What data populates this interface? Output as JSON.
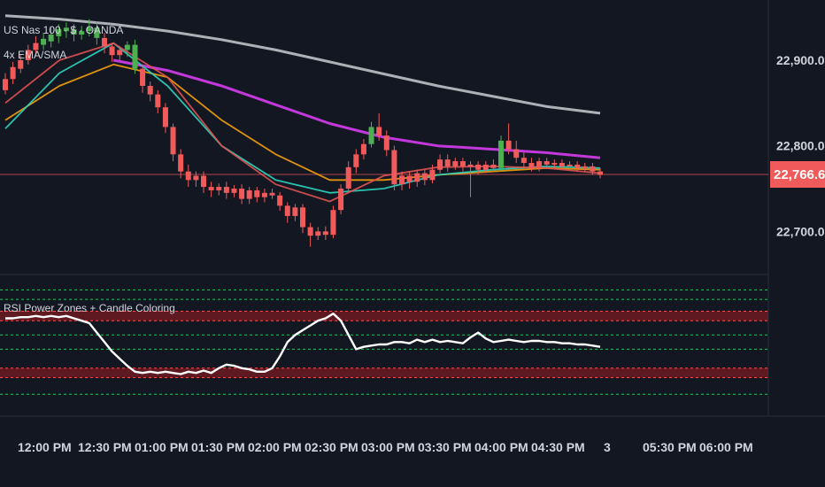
{
  "header": {
    "symbol": "US Nas 100 · $ · OANDA",
    "indicator": "4x EMA/SMA",
    "osc_title": "RSI Power Zones + Candle Coloring"
  },
  "price_axis": {
    "ticks": [
      "22,900.0",
      "22,800.0",
      "22,700.0"
    ],
    "tick_values": [
      22900,
      22800,
      22700
    ],
    "last_label": "22,766.6",
    "last_value": 22766.6
  },
  "time_axis": {
    "labels": [
      "12:00 PM",
      "12:30 PM",
      "01:00 PM",
      "01:30 PM",
      "02:00 PM",
      "02:30 PM",
      "03:00 PM",
      "03:30 PM",
      "04:00 PM",
      "04:30 PM",
      "3",
      "05:30 PM",
      "06:00 PM"
    ]
  },
  "colors": {
    "background": "#131722",
    "bull": "#4caf50",
    "bear": "#f05a5a",
    "ma_white": "#c9cbd1",
    "ma_magenta": "#d63cf0",
    "rsi_line": "#ffffff",
    "zone_fill": "#7a1b22",
    "zone_line": "#ff4d4d",
    "level_line": "#22c55e",
    "last_price_bg": "#f05a5a"
  },
  "chart_data": [
    {
      "type": "candlestick",
      "title": "US Nas 100 · $ · OANDA",
      "x_labels": [
        "12:00 PM",
        "12:30 PM",
        "01:00 PM",
        "01:30 PM",
        "02:00 PM",
        "02:30 PM",
        "03:00 PM",
        "03:30 PM",
        "04:00 PM",
        "04:30 PM"
      ],
      "ylim": [
        22660,
        22960
      ],
      "candles": [
        {
          "o": 22865,
          "c": 22878,
          "h": 22885,
          "l": 22860,
          "col": "bear"
        },
        {
          "o": 22878,
          "c": 22892,
          "h": 22898,
          "l": 22872,
          "col": "bear"
        },
        {
          "o": 22890,
          "c": 22900,
          "h": 22906,
          "l": 22885,
          "col": "bear"
        },
        {
          "o": 22900,
          "c": 22912,
          "h": 22918,
          "l": 22895,
          "col": "bear"
        },
        {
          "o": 22912,
          "c": 22920,
          "h": 22928,
          "l": 22905,
          "col": "bear"
        },
        {
          "o": 22918,
          "c": 22925,
          "h": 22932,
          "l": 22912,
          "col": "bull"
        },
        {
          "o": 22922,
          "c": 22930,
          "h": 22938,
          "l": 22915,
          "col": "bull"
        },
        {
          "o": 22928,
          "c": 22936,
          "h": 22942,
          "l": 22920,
          "col": "bull"
        },
        {
          "o": 22934,
          "c": 22938,
          "h": 22944,
          "l": 22926,
          "col": "bull"
        },
        {
          "o": 22936,
          "c": 22930,
          "h": 22942,
          "l": 22922,
          "col": "bull"
        },
        {
          "o": 22930,
          "c": 22934,
          "h": 22940,
          "l": 22924,
          "col": "bull"
        },
        {
          "o": 22934,
          "c": 22938,
          "h": 22948,
          "l": 22928,
          "col": "bull"
        },
        {
          "o": 22938,
          "c": 22926,
          "h": 22945,
          "l": 22918,
          "col": "bull"
        },
        {
          "o": 22926,
          "c": 22916,
          "h": 22932,
          "l": 22908,
          "col": "bear"
        },
        {
          "o": 22916,
          "c": 22906,
          "h": 22920,
          "l": 22898,
          "col": "bear"
        },
        {
          "o": 22906,
          "c": 22912,
          "h": 22916,
          "l": 22900,
          "col": "bear"
        },
        {
          "o": 22912,
          "c": 22918,
          "h": 22922,
          "l": 22904,
          "col": "bull"
        },
        {
          "o": 22918,
          "c": 22890,
          "h": 22924,
          "l": 22884,
          "col": "bull"
        },
        {
          "o": 22890,
          "c": 22870,
          "h": 22895,
          "l": 22862,
          "col": "bear"
        },
        {
          "o": 22870,
          "c": 22860,
          "h": 22875,
          "l": 22852,
          "col": "bear"
        },
        {
          "o": 22860,
          "c": 22845,
          "h": 22865,
          "l": 22838,
          "col": "bear"
        },
        {
          "o": 22845,
          "c": 22822,
          "h": 22850,
          "l": 22815,
          "col": "bear"
        },
        {
          "o": 22822,
          "c": 22790,
          "h": 22826,
          "l": 22782,
          "col": "bear"
        },
        {
          "o": 22790,
          "c": 22770,
          "h": 22796,
          "l": 22762,
          "col": "bear"
        },
        {
          "o": 22770,
          "c": 22760,
          "h": 22778,
          "l": 22752,
          "col": "bear"
        },
        {
          "o": 22760,
          "c": 22765,
          "h": 22770,
          "l": 22752,
          "col": "bear"
        },
        {
          "o": 22765,
          "c": 22752,
          "h": 22770,
          "l": 22745,
          "col": "bear"
        },
        {
          "o": 22752,
          "c": 22748,
          "h": 22758,
          "l": 22740,
          "col": "bear"
        },
        {
          "o": 22748,
          "c": 22752,
          "h": 22756,
          "l": 22742,
          "col": "bear"
        },
        {
          "o": 22752,
          "c": 22745,
          "h": 22758,
          "l": 22738,
          "col": "bear"
        },
        {
          "o": 22745,
          "c": 22750,
          "h": 22754,
          "l": 22740,
          "col": "bear"
        },
        {
          "o": 22750,
          "c": 22738,
          "h": 22755,
          "l": 22732,
          "col": "bear"
        },
        {
          "o": 22738,
          "c": 22748,
          "h": 22752,
          "l": 22732,
          "col": "bear"
        },
        {
          "o": 22748,
          "c": 22740,
          "h": 22752,
          "l": 22734,
          "col": "bear"
        },
        {
          "o": 22740,
          "c": 22745,
          "h": 22750,
          "l": 22734,
          "col": "bear"
        },
        {
          "o": 22745,
          "c": 22742,
          "h": 22750,
          "l": 22738,
          "col": "bear"
        },
        {
          "o": 22742,
          "c": 22730,
          "h": 22746,
          "l": 22724,
          "col": "bear"
        },
        {
          "o": 22730,
          "c": 22718,
          "h": 22734,
          "l": 22710,
          "col": "bear"
        },
        {
          "o": 22718,
          "c": 22728,
          "h": 22732,
          "l": 22712,
          "col": "bear"
        },
        {
          "o": 22728,
          "c": 22705,
          "h": 22732,
          "l": 22698,
          "col": "bear"
        },
        {
          "o": 22705,
          "c": 22695,
          "h": 22710,
          "l": 22682,
          "col": "bear"
        },
        {
          "o": 22695,
          "c": 22700,
          "h": 22705,
          "l": 22690,
          "col": "bear"
        },
        {
          "o": 22700,
          "c": 22696,
          "h": 22706,
          "l": 22690,
          "col": "bear"
        },
        {
          "o": 22696,
          "c": 22725,
          "h": 22730,
          "l": 22692,
          "col": "bear"
        },
        {
          "o": 22725,
          "c": 22750,
          "h": 22755,
          "l": 22720,
          "col": "bear"
        },
        {
          "o": 22750,
          "c": 22775,
          "h": 22782,
          "l": 22745,
          "col": "bear"
        },
        {
          "o": 22775,
          "c": 22790,
          "h": 22796,
          "l": 22768,
          "col": "bear"
        },
        {
          "o": 22790,
          "c": 22802,
          "h": 22808,
          "l": 22784,
          "col": "bear"
        },
        {
          "o": 22802,
          "c": 22822,
          "h": 22828,
          "l": 22798,
          "col": "bull"
        },
        {
          "o": 22822,
          "c": 22812,
          "h": 22838,
          "l": 22806,
          "col": "bear"
        },
        {
          "o": 22812,
          "c": 22795,
          "h": 22818,
          "l": 22788,
          "col": "bear"
        },
        {
          "o": 22795,
          "c": 22755,
          "h": 22800,
          "l": 22748,
          "col": "bear"
        },
        {
          "o": 22755,
          "c": 22765,
          "h": 22770,
          "l": 22748,
          "col": "bear"
        },
        {
          "o": 22765,
          "c": 22758,
          "h": 22770,
          "l": 22750,
          "col": "bear"
        },
        {
          "o": 22758,
          "c": 22768,
          "h": 22772,
          "l": 22752,
          "col": "bear"
        },
        {
          "o": 22768,
          "c": 22760,
          "h": 22772,
          "l": 22754,
          "col": "bear"
        },
        {
          "o": 22760,
          "c": 22772,
          "h": 22778,
          "l": 22756,
          "col": "bear"
        },
        {
          "o": 22772,
          "c": 22784,
          "h": 22790,
          "l": 22768,
          "col": "bear"
        },
        {
          "o": 22784,
          "c": 22776,
          "h": 22790,
          "l": 22770,
          "col": "bear"
        },
        {
          "o": 22776,
          "c": 22782,
          "h": 22786,
          "l": 22772,
          "col": "bear"
        },
        {
          "o": 22782,
          "c": 22776,
          "h": 22786,
          "l": 22770,
          "col": "bear"
        },
        {
          "o": 22776,
          "c": 22778,
          "h": 22782,
          "l": 22740,
          "col": "bear"
        },
        {
          "o": 22778,
          "c": 22772,
          "h": 22782,
          "l": 22766,
          "col": "bear"
        },
        {
          "o": 22772,
          "c": 22778,
          "h": 22782,
          "l": 22768,
          "col": "bear"
        },
        {
          "o": 22778,
          "c": 22774,
          "h": 22784,
          "l": 22770,
          "col": "bear"
        },
        {
          "o": 22774,
          "c": 22806,
          "h": 22812,
          "l": 22770,
          "col": "bull"
        },
        {
          "o": 22806,
          "c": 22796,
          "h": 22826,
          "l": 22790,
          "col": "bear"
        },
        {
          "o": 22796,
          "c": 22786,
          "h": 22806,
          "l": 22780,
          "col": "bear"
        },
        {
          "o": 22786,
          "c": 22780,
          "h": 22792,
          "l": 22774,
          "col": "bear"
        },
        {
          "o": 22780,
          "c": 22774,
          "h": 22786,
          "l": 22770,
          "col": "bear"
        },
        {
          "o": 22774,
          "c": 22782,
          "h": 22786,
          "l": 22770,
          "col": "bear"
        },
        {
          "o": 22782,
          "c": 22778,
          "h": 22786,
          "l": 22774,
          "col": "bear"
        },
        {
          "o": 22778,
          "c": 22780,
          "h": 22784,
          "l": 22774,
          "col": "bear"
        },
        {
          "o": 22780,
          "c": 22776,
          "h": 22784,
          "l": 22772,
          "col": "bear"
        },
        {
          "o": 22776,
          "c": 22778,
          "h": 22782,
          "l": 22772,
          "col": "bear"
        },
        {
          "o": 22778,
          "c": 22774,
          "h": 22782,
          "l": 22770,
          "col": "bear"
        },
        {
          "o": 22774,
          "c": 22776,
          "h": 22780,
          "l": 22770,
          "col": "bear"
        },
        {
          "o": 22776,
          "c": 22770,
          "h": 22780,
          "l": 22766,
          "col": "bear"
        },
        {
          "o": 22770,
          "c": 22766,
          "h": 22774,
          "l": 22762,
          "col": "bear"
        }
      ]
    },
    {
      "type": "line",
      "title": "4x EMA/SMA",
      "series": [
        {
          "color": "#c9cbd1",
          "values": [
            22952,
            22948,
            22942,
            22934,
            22924,
            22912,
            22898,
            22884,
            22870,
            22858,
            22846,
            22838
          ]
        },
        {
          "color": "#d63cf0",
          "values": [
            null,
            null,
            22900,
            22888,
            22870,
            22848,
            22826,
            22810,
            22800,
            22796,
            22792,
            22786
          ]
        },
        {
          "color": "#f59e0b",
          "values": [
            22830,
            22870,
            22895,
            22880,
            22830,
            22790,
            22760,
            22760,
            22766,
            22770,
            22774,
            22772
          ]
        },
        {
          "color": "#2dd4bf",
          "values": [
            22820,
            22885,
            22920,
            22870,
            22800,
            22760,
            22745,
            22750,
            22766,
            22772,
            22776,
            22774
          ]
        },
        {
          "color": "#e05252",
          "values": [
            22850,
            22900,
            22920,
            22880,
            22800,
            22755,
            22735,
            22765,
            22775,
            22776,
            22774,
            22768
          ]
        }
      ]
    },
    {
      "type": "line",
      "title": "RSI Power Zones + Candle Coloring",
      "ylim": [
        0,
        100
      ],
      "zones": [
        [
          70,
          78
        ],
        [
          22,
          30
        ]
      ],
      "levels": [
        96,
        88,
        58,
        46,
        8
      ],
      "series": [
        {
          "color": "#ffffff",
          "values": [
            72,
            72,
            73,
            73,
            74,
            73,
            74,
            73,
            74,
            72,
            70,
            68,
            60,
            52,
            44,
            38,
            32,
            27,
            26,
            27,
            26,
            27,
            26,
            25,
            27,
            26,
            28,
            26,
            30,
            33,
            32,
            30,
            29,
            27,
            27,
            30,
            40,
            52,
            58,
            62,
            66,
            70,
            72,
            76,
            70,
            58,
            46,
            48,
            49,
            50,
            50,
            52,
            52,
            51,
            54,
            52,
            54,
            52,
            53,
            52,
            51,
            56,
            60,
            55,
            52,
            53,
            54,
            53,
            52,
            53,
            53,
            52,
            52,
            51,
            51,
            50,
            50,
            49,
            48
          ]
        }
      ]
    }
  ]
}
